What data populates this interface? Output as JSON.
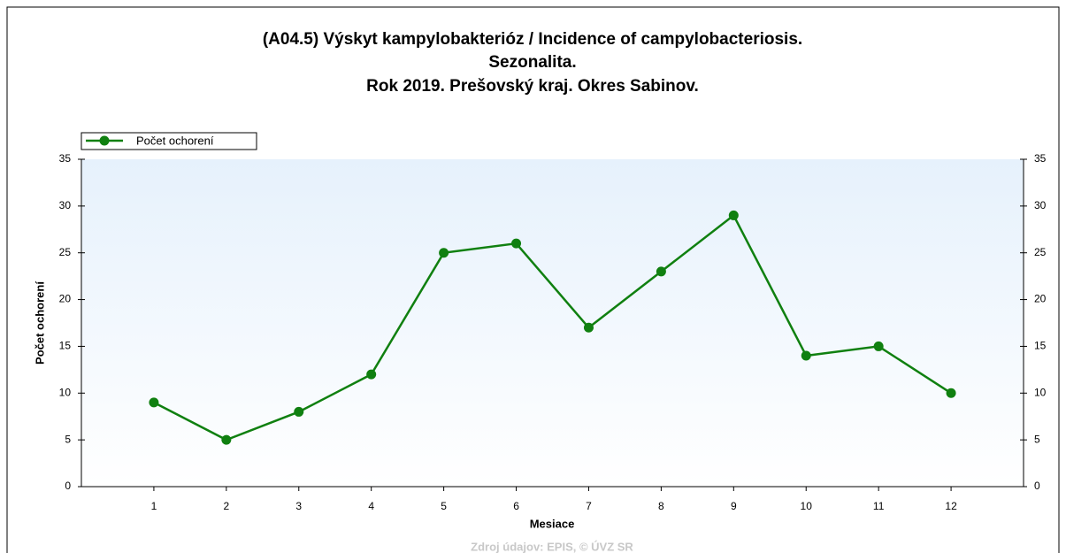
{
  "chart_data": {
    "type": "line",
    "title": [
      "(A04.5) Výskyt kampylobakterióz / Incidence of campylobacteriosis.",
      "Sezonalita.",
      "Rok 2019. Prešovský kraj. Okres Sabinov."
    ],
    "x": [
      1,
      2,
      3,
      4,
      5,
      6,
      7,
      8,
      9,
      10,
      11,
      12
    ],
    "series": [
      {
        "name": "Počet ochorení",
        "color": "#108010",
        "values": [
          9,
          5,
          8,
          12,
          25,
          26,
          17,
          23,
          29,
          14,
          15,
          10
        ]
      }
    ],
    "xlabel": "Mesiace",
    "ylabel": "Počet ochorení",
    "xlim": [
      0,
      13
    ],
    "xticks": [
      1,
      2,
      3,
      4,
      5,
      6,
      7,
      8,
      9,
      10,
      11,
      12
    ],
    "ylim": [
      0,
      35
    ],
    "yticks": [
      0,
      5,
      10,
      15,
      20,
      25,
      30,
      35
    ],
    "y2lim": [
      0,
      35
    ],
    "y2ticks": [
      0,
      5,
      10,
      15,
      20,
      25,
      30,
      35
    ],
    "legend": "top-left",
    "source": "Zdroj údajov: EPIS, © ÚVZ SR"
  }
}
